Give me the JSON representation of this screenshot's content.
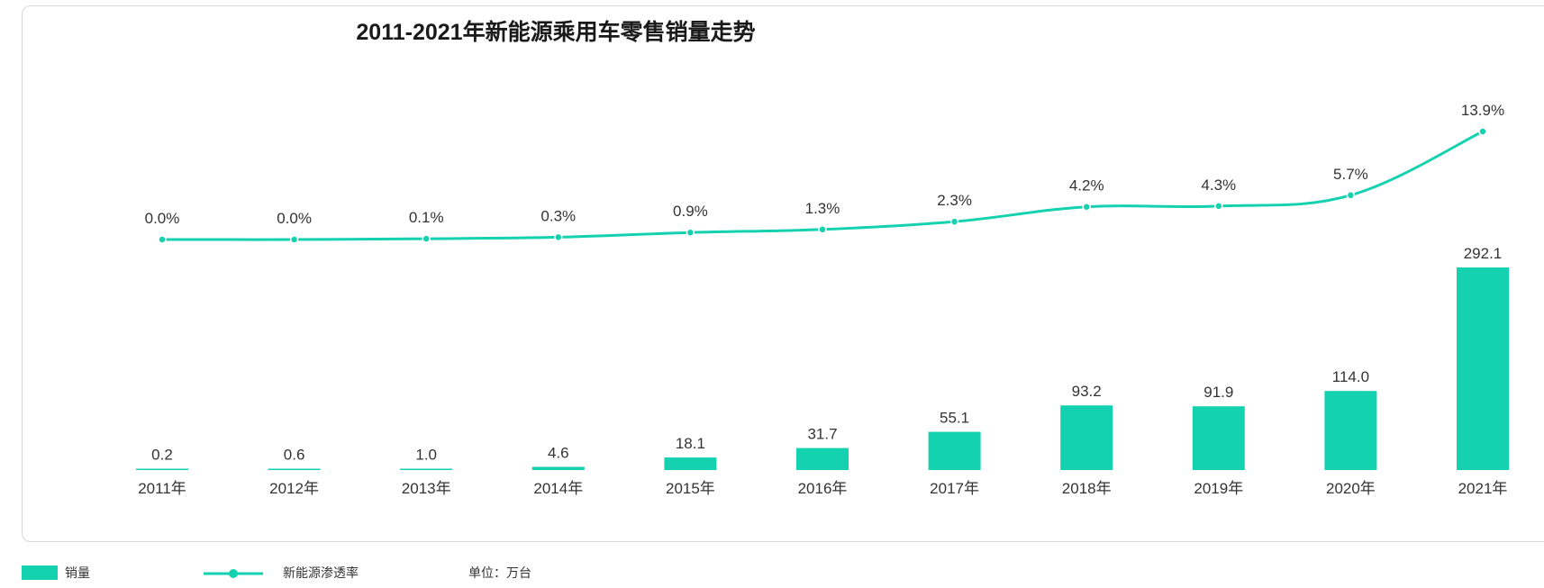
{
  "colors": {
    "accent": "#14d1b0",
    "text": "#333333"
  },
  "legend": {
    "bar_label": "销量",
    "line_label": "新能源渗透率",
    "unit": "单位：万台"
  },
  "chart_data": {
    "type": "bar+line",
    "title": "2011-2021年新能源乘用车零售销量走势",
    "categories": [
      "2011年",
      "2012年",
      "2013年",
      "2014年",
      "2015年",
      "2016年",
      "2017年",
      "2018年",
      "2019年",
      "2020年",
      "2021年"
    ],
    "series": [
      {
        "name": "销量",
        "type": "bar",
        "values": [
          0.2,
          0.6,
          1.0,
          4.6,
          18.1,
          31.7,
          55.1,
          93.2,
          91.9,
          114.0,
          292.1
        ],
        "labels": [
          "0.2",
          "0.6",
          "1.0",
          "4.6",
          "18.1",
          "31.7",
          "55.1",
          "93.2",
          "91.9",
          "114.0",
          "292.1"
        ]
      },
      {
        "name": "新能源渗透率",
        "type": "line",
        "values": [
          0.0,
          0.0,
          0.1,
          0.3,
          0.9,
          1.3,
          2.3,
          4.2,
          4.3,
          5.7,
          13.9
        ],
        "labels": [
          "0.0%",
          "0.0%",
          "0.1%",
          "0.3%",
          "0.9%",
          "1.3%",
          "2.3%",
          "4.2%",
          "4.3%",
          "5.7%",
          "13.9%"
        ]
      }
    ],
    "grid": false,
    "legend_position": "bottom-left"
  }
}
